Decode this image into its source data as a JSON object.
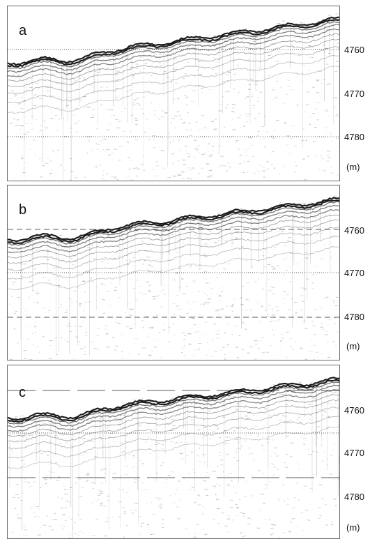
{
  "panels": [
    {
      "id": "a",
      "label": "a",
      "ticks": [
        "4760",
        "4770",
        "4780"
      ],
      "unit": "(m)"
    },
    {
      "id": "b",
      "label": "b",
      "ticks": [
        "4760",
        "4770",
        "4780"
      ],
      "unit": "(m)"
    },
    {
      "id": "c",
      "label": "c",
      "ticks": [
        "4760",
        "4770",
        "4780"
      ],
      "unit": "(m)"
    }
  ],
  "colors": {
    "reflector": "#111111",
    "noise": "#7a7a7a",
    "guide": "#222222"
  }
}
